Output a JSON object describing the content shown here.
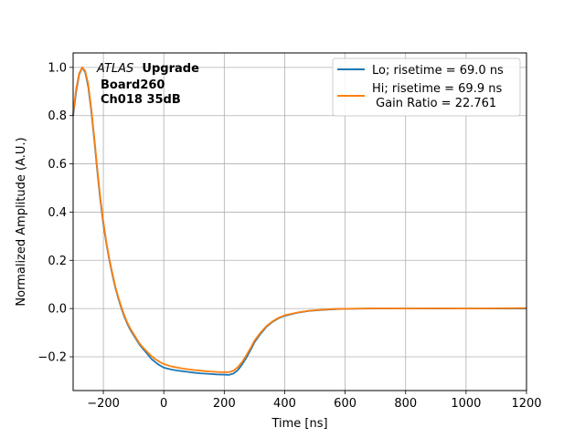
{
  "chart_data": {
    "type": "line",
    "xlabel": "Time [ns]",
    "ylabel": "Normalized Amplitude (A.U.)",
    "xlim": [
      -300,
      1200
    ],
    "ylim": [
      -0.34,
      1.06
    ],
    "xticks": [
      -200,
      0,
      200,
      400,
      600,
      800,
      1000,
      1200
    ],
    "yticks": [
      -0.2,
      0.0,
      0.2,
      0.4,
      0.6,
      0.8,
      1.0
    ],
    "xtick_labels": [
      "−200",
      "0",
      "200",
      "400",
      "600",
      "800",
      "1000",
      "1200"
    ],
    "ytick_labels": [
      "−0.2",
      "0.0",
      "0.2",
      "0.4",
      "0.6",
      "0.8",
      "1.0"
    ],
    "grid": true,
    "legend_position": "top-right",
    "annotation": {
      "experiment": "ATLAS",
      "tag": "Upgrade",
      "lines": [
        "Board260",
        "Ch018 35dB"
      ]
    },
    "series": [
      {
        "name": "Lo; risetime = 69.0 ns",
        "color": "#1f77b4",
        "points": [
          [
            -300,
            0.8
          ],
          [
            -290,
            0.9
          ],
          [
            -280,
            0.97
          ],
          [
            -270,
            1.0
          ],
          [
            -260,
            0.98
          ],
          [
            -250,
            0.92
          ],
          [
            -240,
            0.82
          ],
          [
            -230,
            0.7
          ],
          [
            -220,
            0.57
          ],
          [
            -210,
            0.45
          ],
          [
            -200,
            0.35
          ],
          [
            -190,
            0.27
          ],
          [
            -180,
            0.2
          ],
          [
            -170,
            0.14
          ],
          [
            -160,
            0.085
          ],
          [
            -150,
            0.04
          ],
          [
            -140,
            0.0
          ],
          [
            -130,
            -0.035
          ],
          [
            -120,
            -0.065
          ],
          [
            -110,
            -0.09
          ],
          [
            -100,
            -0.11
          ],
          [
            -90,
            -0.13
          ],
          [
            -80,
            -0.15
          ],
          [
            -70,
            -0.165
          ],
          [
            -60,
            -0.18
          ],
          [
            -50,
            -0.195
          ],
          [
            -40,
            -0.21
          ],
          [
            -30,
            -0.22
          ],
          [
            -20,
            -0.23
          ],
          [
            -10,
            -0.238
          ],
          [
            0,
            -0.245
          ],
          [
            25,
            -0.253
          ],
          [
            50,
            -0.258
          ],
          [
            75,
            -0.262
          ],
          [
            100,
            -0.266
          ],
          [
            125,
            -0.269
          ],
          [
            150,
            -0.271
          ],
          [
            175,
            -0.273
          ],
          [
            200,
            -0.274
          ],
          [
            215,
            -0.275
          ],
          [
            230,
            -0.27
          ],
          [
            245,
            -0.255
          ],
          [
            260,
            -0.23
          ],
          [
            275,
            -0.2
          ],
          [
            290,
            -0.165
          ],
          [
            300,
            -0.14
          ],
          [
            320,
            -0.105
          ],
          [
            340,
            -0.075
          ],
          [
            360,
            -0.055
          ],
          [
            380,
            -0.04
          ],
          [
            400,
            -0.03
          ],
          [
            440,
            -0.018
          ],
          [
            480,
            -0.01
          ],
          [
            520,
            -0.006
          ],
          [
            560,
            -0.003
          ],
          [
            600,
            -0.001
          ],
          [
            700,
            0.0
          ],
          [
            800,
            0.0
          ],
          [
            900,
            0.0
          ],
          [
            1000,
            0.0
          ],
          [
            1100,
            0.0
          ],
          [
            1200,
            0.0
          ]
        ]
      },
      {
        "name": "Hi; risetime = 69.9 ns\n Gain Ratio = 22.761",
        "color": "#ff7f0e",
        "points": [
          [
            -300,
            0.81
          ],
          [
            -290,
            0.91
          ],
          [
            -280,
            0.975
          ],
          [
            -270,
            1.0
          ],
          [
            -260,
            0.985
          ],
          [
            -250,
            0.93
          ],
          [
            -240,
            0.83
          ],
          [
            -230,
            0.71
          ],
          [
            -220,
            0.58
          ],
          [
            -210,
            0.46
          ],
          [
            -200,
            0.36
          ],
          [
            -190,
            0.275
          ],
          [
            -180,
            0.205
          ],
          [
            -170,
            0.145
          ],
          [
            -160,
            0.09
          ],
          [
            -150,
            0.045
          ],
          [
            -140,
            0.005
          ],
          [
            -130,
            -0.03
          ],
          [
            -120,
            -0.06
          ],
          [
            -110,
            -0.085
          ],
          [
            -100,
            -0.105
          ],
          [
            -90,
            -0.125
          ],
          [
            -80,
            -0.145
          ],
          [
            -70,
            -0.16
          ],
          [
            -60,
            -0.173
          ],
          [
            -50,
            -0.186
          ],
          [
            -40,
            -0.198
          ],
          [
            -30,
            -0.208
          ],
          [
            -20,
            -0.216
          ],
          [
            -10,
            -0.224
          ],
          [
            0,
            -0.23
          ],
          [
            25,
            -0.24
          ],
          [
            50,
            -0.246
          ],
          [
            75,
            -0.251
          ],
          [
            100,
            -0.255
          ],
          [
            125,
            -0.258
          ],
          [
            150,
            -0.261
          ],
          [
            175,
            -0.263
          ],
          [
            200,
            -0.264
          ],
          [
            215,
            -0.264
          ],
          [
            230,
            -0.258
          ],
          [
            245,
            -0.243
          ],
          [
            260,
            -0.22
          ],
          [
            275,
            -0.19
          ],
          [
            290,
            -0.157
          ],
          [
            300,
            -0.133
          ],
          [
            320,
            -0.1
          ],
          [
            340,
            -0.072
          ],
          [
            360,
            -0.053
          ],
          [
            380,
            -0.038
          ],
          [
            400,
            -0.028
          ],
          [
            440,
            -0.017
          ],
          [
            480,
            -0.009
          ],
          [
            520,
            -0.005
          ],
          [
            560,
            -0.002
          ],
          [
            600,
            -0.001
          ],
          [
            700,
            0.001
          ],
          [
            800,
            0.0
          ],
          [
            900,
            0.001
          ],
          [
            1000,
            0.0
          ],
          [
            1100,
            0.001
          ],
          [
            1200,
            0.002
          ]
        ]
      }
    ]
  }
}
